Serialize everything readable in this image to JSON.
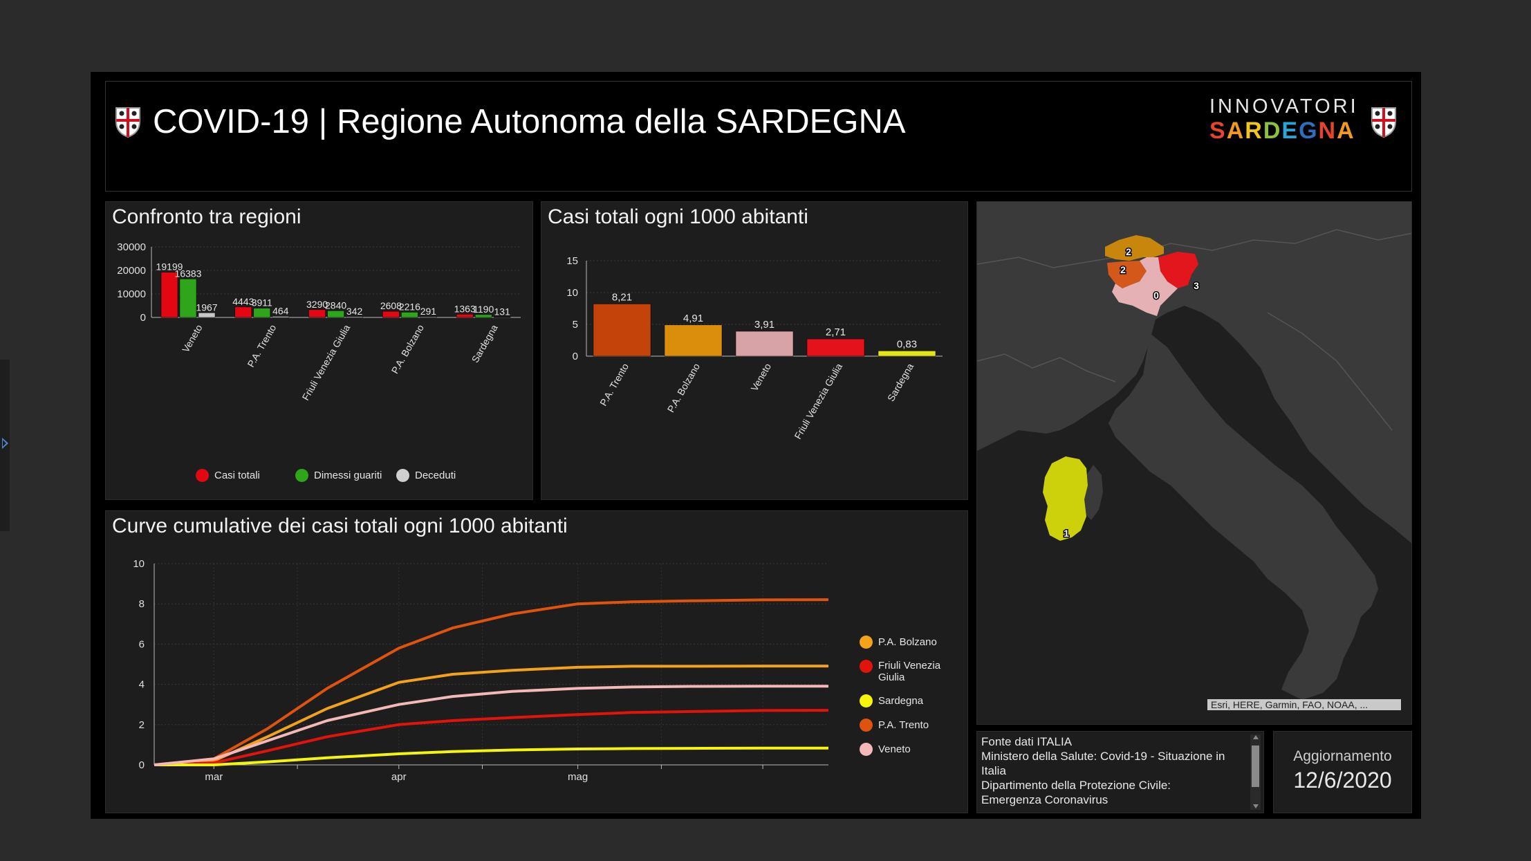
{
  "header": {
    "title": "COVID-19 | Regione Autonoma della SARDEGNA",
    "brand_top": "INNOVATORI",
    "brand_bottom": [
      "S",
      "A",
      "R",
      "D",
      "E",
      "G",
      "N",
      "A"
    ],
    "brand_colors": [
      "#e8442d",
      "#f29a1e",
      "#f2c41e",
      "#8cc13f",
      "#2aa3d8",
      "#2f6dc1",
      "#e8442d",
      "#f29a1e"
    ]
  },
  "panel_compare": {
    "title": "Confronto tra regioni",
    "legend": [
      {
        "label": "Casi totali",
        "color": "#e30613"
      },
      {
        "label": "Dimessi guariti",
        "color": "#2ea51b"
      },
      {
        "label": "Deceduti",
        "color": "#cfcfcf"
      }
    ]
  },
  "panel_per1000": {
    "title": "Casi totali ogni 1000 abitanti"
  },
  "panel_curves": {
    "title": "Curve cumulative dei casi totali ogni 1000 abitanti",
    "legend": [
      {
        "label": "P.A. Bolzano",
        "color": "#f3a21a"
      },
      {
        "label": "Friuli Venezia Giulia",
        "color": "#e3120b"
      },
      {
        "label": "Sardegna",
        "color": "#f5f50c"
      },
      {
        "label": "P.A. Trento",
        "color": "#e0530f"
      },
      {
        "label": "Veneto",
        "color": "#f5b8b8"
      }
    ]
  },
  "map": {
    "attribution": "Esri, HERE, Garmin, FAO, NOAA, ...",
    "markers": [
      "2",
      "2",
      "3",
      "0",
      "1"
    ],
    "region_colors": {
      "bolzano": "#c8860c",
      "trento": "#d4581a",
      "friuli": "#e3161e",
      "veneto": "#e6b1b4",
      "sardegna": "#cdd10c"
    }
  },
  "source": {
    "lines": [
      "Fonte dati ITALIA",
      "Ministero della Salute: Covid-19 - Situazione in",
      "Italia",
      "Dipartimento della Protezione Civile:",
      "Emergenza Coronavirus"
    ]
  },
  "update": {
    "label": "Aggiornamento",
    "value": "12/6/2020"
  },
  "chart_data": [
    {
      "type": "bar",
      "title": "Confronto tra regioni",
      "categories": [
        "Veneto",
        "P.A. Trento",
        "Friuli Venezia Giulia",
        "P.A. Bolzano",
        "Sardegna"
      ],
      "series": [
        {
          "name": "Casi totali",
          "color": "#e30613",
          "values": [
            19199,
            4443,
            3290,
            2608,
            1363
          ]
        },
        {
          "name": "Dimessi guariti",
          "color": "#2ea51b",
          "values": [
            16383,
            3911,
            2840,
            2216,
            1190
          ]
        },
        {
          "name": "Deceduti",
          "color": "#c8c8c8",
          "values": [
            1967,
            464,
            342,
            291,
            131
          ]
        }
      ],
      "ylim": [
        0,
        30000
      ],
      "yticks": [
        "0",
        "10000",
        "20000",
        "30000"
      ],
      "legend_position": "bottom"
    },
    {
      "type": "bar",
      "title": "Casi totali ogni 1000 abitanti",
      "categories": [
        "P.A. Trento",
        "P.A. Bolzano",
        "Veneto",
        "Friuli Venezia Giulia",
        "Sardegna"
      ],
      "values": [
        8.21,
        4.91,
        3.91,
        2.71,
        0.83
      ],
      "labels": [
        "8,21",
        "4,91",
        "3,91",
        "2,71",
        "0,83"
      ],
      "colors": [
        "#c4430a",
        "#db8e0c",
        "#d8a3a6",
        "#e3121b",
        "#e4e41a"
      ],
      "ylim": [
        0,
        15
      ],
      "yticks": [
        "0",
        "5",
        "10",
        "15"
      ]
    },
    {
      "type": "line",
      "title": "Curve cumulative dei casi totali ogni 1000 abitanti",
      "x": [
        "2020-02-20",
        "2020-03-01",
        "2020-03-10",
        "2020-03-20",
        "2020-04-01",
        "2020-04-10",
        "2020-04-20",
        "2020-05-01",
        "2020-05-10",
        "2020-05-20",
        "2020-06-01",
        "2020-06-12"
      ],
      "xticks": [
        "mar",
        "apr",
        "mag"
      ],
      "ylim": [
        0,
        10
      ],
      "yticks": [
        "0",
        "2",
        "4",
        "6",
        "8",
        "10"
      ],
      "series": [
        {
          "name": "P.A. Bolzano",
          "color": "#f3a21a",
          "values": [
            0,
            0.2,
            1.4,
            2.8,
            4.1,
            4.5,
            4.7,
            4.85,
            4.9,
            4.9,
            4.91,
            4.91
          ]
        },
        {
          "name": "Friuli Venezia Giulia",
          "color": "#e3120b",
          "values": [
            0,
            0.1,
            0.7,
            1.4,
            2.0,
            2.2,
            2.35,
            2.5,
            2.6,
            2.65,
            2.7,
            2.71
          ]
        },
        {
          "name": "Sardegna",
          "color": "#f5f50c",
          "values": [
            0,
            0,
            0.15,
            0.35,
            0.55,
            0.66,
            0.74,
            0.79,
            0.81,
            0.82,
            0.83,
            0.83
          ]
        },
        {
          "name": "P.A. Trento",
          "color": "#e0530f",
          "values": [
            0,
            0.3,
            1.8,
            3.8,
            5.8,
            6.8,
            7.5,
            8.0,
            8.1,
            8.15,
            8.2,
            8.21
          ]
        },
        {
          "name": "Veneto",
          "color": "#f5b8b8",
          "values": [
            0,
            0.3,
            1.2,
            2.2,
            3.0,
            3.4,
            3.65,
            3.8,
            3.87,
            3.9,
            3.91,
            3.91
          ]
        }
      ]
    }
  ]
}
